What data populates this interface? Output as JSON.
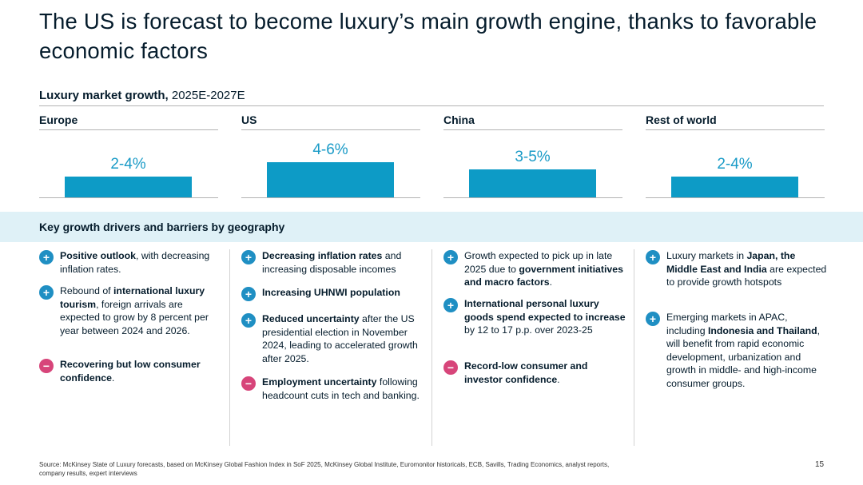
{
  "title": "The US is forecast to become luxury’s main growth engine, thanks to favorable economic factors",
  "subtitle": {
    "bold": "Luxury market growth,",
    "normal": " 2025E-2027E"
  },
  "chart_data": {
    "type": "bar",
    "title": "Luxury market growth, 2025E-2027E",
    "categories": [
      "Europe",
      "US",
      "China",
      "Rest of world"
    ],
    "labels": [
      "2-4%",
      "4-6%",
      "3-5%",
      "2-4%"
    ],
    "values": [
      3,
      5,
      4,
      3
    ],
    "unit": "% growth (midpoint of range)",
    "ylim": [
      0,
      5
    ]
  },
  "drivers_heading": "Key growth drivers and barriers by geography",
  "columns": [
    {
      "region": "Europe",
      "items": [
        {
          "type": "plus",
          "parts": [
            {
              "b": true,
              "t": "Positive outlook"
            },
            {
              "b": false,
              "t": ", with decreasing inflation rates."
            }
          ]
        },
        {
          "type": "plus",
          "parts": [
            {
              "b": false,
              "t": "Rebound of "
            },
            {
              "b": true,
              "t": "international luxury tourism"
            },
            {
              "b": false,
              "t": ", foreign arrivals are expected to grow by 8 percent per year between 2024 and 2026."
            }
          ]
        },
        {
          "type": "minus",
          "parts": [
            {
              "b": true,
              "t": "Recovering but low consumer confidence"
            },
            {
              "b": false,
              "t": "."
            }
          ]
        }
      ]
    },
    {
      "region": "US",
      "items": [
        {
          "type": "plus",
          "parts": [
            {
              "b": true,
              "t": "Decreasing inflation rates"
            },
            {
              "b": false,
              "t": " and increasing disposable incomes"
            }
          ]
        },
        {
          "type": "plus",
          "parts": [
            {
              "b": true,
              "t": "Increasing UHNWI population"
            }
          ]
        },
        {
          "type": "plus",
          "parts": [
            {
              "b": true,
              "t": "Reduced uncertainty"
            },
            {
              "b": false,
              "t": " after the US presidential election in November 2024, leading to accelerated growth after 2025."
            }
          ]
        },
        {
          "type": "minus",
          "parts": [
            {
              "b": true,
              "t": "Employment uncertainty"
            },
            {
              "b": false,
              "t": " following headcount cuts in tech and banking."
            }
          ]
        }
      ]
    },
    {
      "region": "China",
      "items": [
        {
          "type": "plus",
          "parts": [
            {
              "b": false,
              "t": "Growth expected to pick up in late 2025 due to "
            },
            {
              "b": true,
              "t": "government initiatives and macro factors"
            },
            {
              "b": false,
              "t": "."
            }
          ]
        },
        {
          "type": "plus",
          "parts": [
            {
              "b": true,
              "t": "International personal luxury goods spend expected to increase"
            },
            {
              "b": false,
              "t": " by 12 to 17 p.p. over 2023-25"
            }
          ]
        },
        {
          "type": "minus",
          "parts": [
            {
              "b": true,
              "t": "Record-low consumer and investor confidence"
            },
            {
              "b": false,
              "t": "."
            }
          ]
        }
      ]
    },
    {
      "region": "Rest of world",
      "items": [
        {
          "type": "plus",
          "parts": [
            {
              "b": false,
              "t": "Luxury markets in "
            },
            {
              "b": true,
              "t": "Japan, the Middle East and India"
            },
            {
              "b": false,
              "t": " are expected to provide growth hotspots"
            }
          ]
        },
        {
          "type": "plus",
          "parts": [
            {
              "b": false,
              "t": "Emerging markets in APAC, including "
            },
            {
              "b": true,
              "t": "Indonesia and Thailand"
            },
            {
              "b": false,
              "t": ", will benefit from rapid economic development, urbanization and growth in middle- and high-income consumer groups."
            }
          ]
        }
      ]
    }
  ],
  "source": "Source: McKinsey State of Luxury forecasts, based on McKinsey Global Fashion Index in SoF 2025, McKinsey Global Institute, Euromonitor historicals, ECB, Savills, Trading Economics, analyst reports, company results, expert interviews",
  "page_number": "15"
}
